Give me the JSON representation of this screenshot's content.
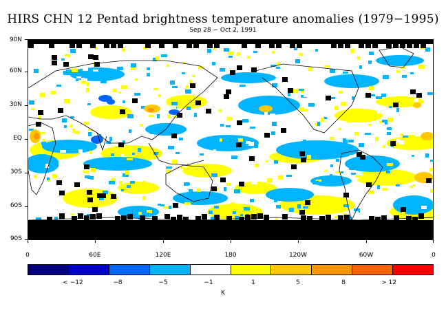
{
  "title": "HIRS CHN 12 Pentad brightness temperature anomalies (1979−1995)",
  "subtitle": "Sep 28 − Oct 2, 1991",
  "lat_labels": [
    "90N",
    "60N",
    "30N",
    "EQ",
    "30S",
    "60S",
    "90S"
  ],
  "lon_labels": [
    "0",
    "60E",
    "120E",
    "180",
    "120W",
    "60W",
    "0"
  ],
  "colorbar": {
    "colors": [
      "#00007f",
      "#0000c8",
      "#0064ff",
      "#00b4ff",
      "#ffffff",
      "#ffff00",
      "#ffc800",
      "#ff9600",
      "#ff6400",
      "#ff0000"
    ],
    "labels": [
      "< −12",
      "−8",
      "−5",
      "−1",
      "1",
      "5",
      "8",
      "> 12"
    ],
    "unit": "K"
  },
  "map_colors": {
    "missing": "#000000",
    "coast": "#000000",
    "neutral": "#ffffff",
    "warm_weak": "#ffff00",
    "warm_mid": "#ffc800",
    "warm_strong": "#ff9600",
    "cool_weak": "#00b4ff",
    "cool_mid": "#0064ff"
  }
}
